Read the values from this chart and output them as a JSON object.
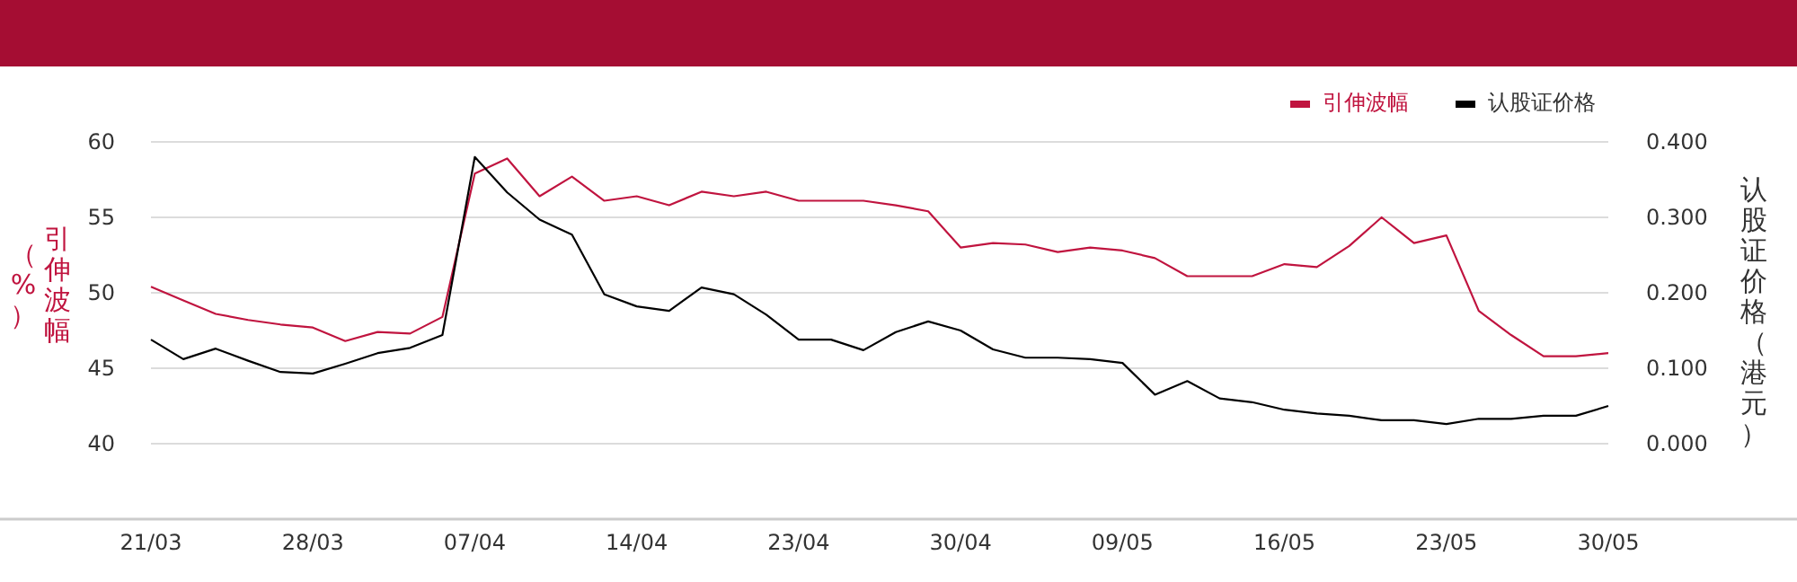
{
  "chart_data": {
    "type": "line",
    "categories": [
      "21/03",
      null,
      null,
      null,
      null,
      "28/03",
      null,
      null,
      null,
      null,
      "07/04",
      null,
      null,
      null,
      null,
      "14/04",
      null,
      null,
      null,
      null,
      "23/04",
      null,
      null,
      null,
      null,
      "30/04",
      null,
      null,
      null,
      null,
      "09/05",
      null,
      null,
      null,
      null,
      "16/05",
      null,
      null,
      null,
      null,
      "23/05",
      null,
      null,
      null,
      null,
      "30/05"
    ],
    "series": [
      {
        "name": "引伸波幅",
        "color": "#c0143f",
        "values": [
          50.4,
          49.5,
          48.6,
          48.2,
          47.9,
          47.7,
          46.8,
          47.4,
          47.3,
          48.4,
          57.9,
          58.9,
          56.4,
          57.7,
          56.1,
          56.4,
          55.8,
          56.7,
          56.4,
          56.7,
          56.1,
          56.1,
          56.1,
          55.8,
          55.4,
          53.0,
          53.3,
          53.2,
          52.7,
          53.0,
          52.8,
          52.3,
          51.1,
          51.1,
          51.1,
          51.9,
          51.7,
          53.1,
          55.0,
          53.3,
          53.8,
          48.8,
          47.2,
          45.8,
          45.8,
          46.0
        ]
      },
      {
        "name": "认股证价格",
        "color": "#000000",
        "axis": "y2",
        "values": [
          0.138,
          0.112,
          0.126,
          0.11,
          0.095,
          0.093,
          0.106,
          0.12,
          0.127,
          0.144,
          0.38,
          0.333,
          0.297,
          0.277,
          0.198,
          0.182,
          0.176,
          0.207,
          0.198,
          0.171,
          0.138,
          0.138,
          0.124,
          0.148,
          0.162,
          0.15,
          0.125,
          0.114,
          0.114,
          0.112,
          0.107,
          0.065,
          0.083,
          0.06,
          0.055,
          0.045,
          0.04,
          0.037,
          0.031,
          0.031,
          0.026,
          0.033,
          0.033,
          0.037,
          0.037,
          0.05
        ]
      }
    ],
    "ylabel": "引伸波幅（%）",
    "y2label": "认股证价格（港元）",
    "ylim": [
      35,
      60
    ],
    "yticks": [
      40,
      45,
      50,
      55,
      60
    ],
    "y2lim": [
      -0.1,
      0.4
    ],
    "y2ticks": [
      {
        "value": 0,
        "label": "0.000"
      },
      {
        "value": 0.1,
        "label": "0.100"
      },
      {
        "value": 0.2,
        "label": "0.200"
      },
      {
        "value": 0.3,
        "label": "0.300"
      },
      {
        "value": 0.4,
        "label": "0.400"
      }
    ],
    "grid": "y",
    "legend": "top right"
  }
}
